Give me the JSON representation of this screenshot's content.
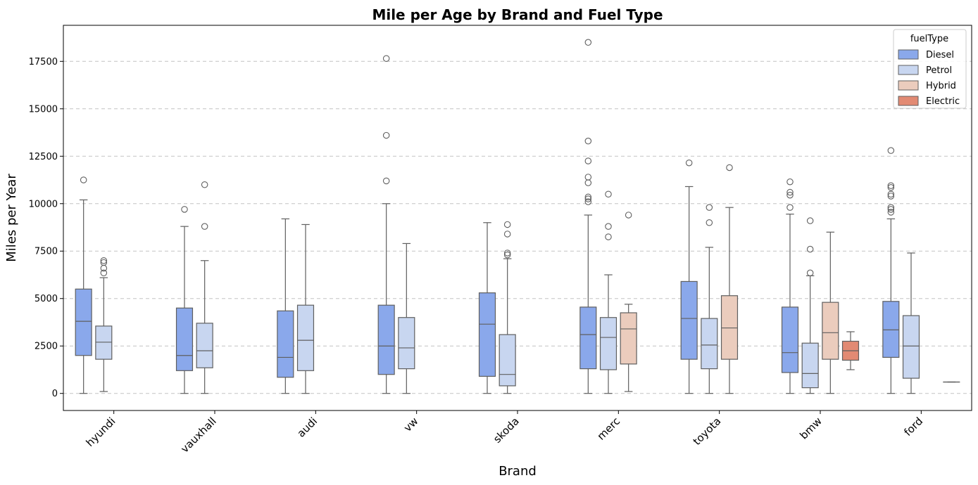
{
  "chart_data": {
    "type": "box",
    "title": "Mile per Age by Brand and Fuel Type",
    "xlabel": "Brand",
    "ylabel": "Miles per Year",
    "ylim": [
      -900,
      19400
    ],
    "yticks": [
      0,
      2500,
      5000,
      7500,
      10000,
      12500,
      15000,
      17500
    ],
    "grid": "y-dashed",
    "legend": {
      "title": "fuelType",
      "placement": "top-right",
      "entries": [
        "Diesel",
        "Petrol",
        "Hybrid",
        "Electric"
      ]
    },
    "categories": [
      "hyundi",
      "vauxhall",
      "audi",
      "vw",
      "skoda",
      "merc",
      "toyota",
      "bmw",
      "ford"
    ],
    "hue_colors": {
      "Diesel": "#8aa8eb",
      "Petrol": "#c8d6f0",
      "Hybrid": "#ebccbd",
      "Electric": "#e28a73"
    },
    "series": [
      {
        "name": "Diesel",
        "boxes": [
          {
            "category": "hyundi",
            "whisker_low": 0,
            "q1": 2000,
            "median": 3800,
            "q3": 5500,
            "whisker_high": 10200,
            "outliers": [
              11250
            ]
          },
          {
            "category": "vauxhall",
            "whisker_low": 0,
            "q1": 1200,
            "median": 2000,
            "q3": 4500,
            "whisker_high": 8800,
            "outliers": [
              9700
            ]
          },
          {
            "category": "audi",
            "whisker_low": 0,
            "q1": 850,
            "median": 1900,
            "q3": 4350,
            "whisker_high": 9200,
            "outliers": []
          },
          {
            "category": "vw",
            "whisker_low": 0,
            "q1": 1000,
            "median": 2500,
            "q3": 4650,
            "whisker_high": 10000,
            "outliers": [
              11200,
              13600,
              17650
            ]
          },
          {
            "category": "skoda",
            "whisker_low": 0,
            "q1": 900,
            "median": 3650,
            "q3": 5300,
            "whisker_high": 9000,
            "outliers": []
          },
          {
            "category": "merc",
            "whisker_low": 0,
            "q1": 1300,
            "median": 3100,
            "q3": 4550,
            "whisker_high": 9400,
            "outliers": [
              10100,
              10250,
              10350,
              11100,
              11400,
              12250,
              13300,
              18500
            ]
          },
          {
            "category": "toyota",
            "whisker_low": 0,
            "q1": 1800,
            "median": 3950,
            "q3": 5900,
            "whisker_high": 10900,
            "outliers": [
              12150
            ]
          },
          {
            "category": "bmw",
            "whisker_low": 0,
            "q1": 1100,
            "median": 2150,
            "q3": 4550,
            "whisker_high": 9450,
            "outliers": [
              9800,
              10450,
              10600,
              11150
            ]
          },
          {
            "category": "ford",
            "whisker_low": 0,
            "q1": 1900,
            "median": 3350,
            "q3": 4850,
            "whisker_high": 9200,
            "outliers": [
              9550,
              9700,
              9800,
              10400,
              10500,
              10850,
              10950,
              12800
            ]
          }
        ]
      },
      {
        "name": "Petrol",
        "boxes": [
          {
            "category": "hyundi",
            "whisker_low": 100,
            "q1": 1800,
            "median": 2700,
            "q3": 3550,
            "whisker_high": 6100,
            "outliers": [
              6350,
              6600,
              6900,
              7000
            ]
          },
          {
            "category": "vauxhall",
            "whisker_low": 0,
            "q1": 1350,
            "median": 2250,
            "q3": 3700,
            "whisker_high": 7000,
            "outliers": [
              8800,
              11000
            ]
          },
          {
            "category": "audi",
            "whisker_low": 0,
            "q1": 1200,
            "median": 2800,
            "q3": 4650,
            "whisker_high": 8900,
            "outliers": []
          },
          {
            "category": "vw",
            "whisker_low": 0,
            "q1": 1300,
            "median": 2400,
            "q3": 4000,
            "whisker_high": 7900,
            "outliers": []
          },
          {
            "category": "skoda",
            "whisker_low": 0,
            "q1": 400,
            "median": 1000,
            "q3": 3100,
            "whisker_high": 7100,
            "outliers": [
              7300,
              7400,
              8400,
              8900
            ]
          },
          {
            "category": "merc",
            "whisker_low": 0,
            "q1": 1250,
            "median": 2950,
            "q3": 4000,
            "whisker_high": 6250,
            "outliers": [
              8250,
              8800,
              10500
            ]
          },
          {
            "category": "toyota",
            "whisker_low": 0,
            "q1": 1300,
            "median": 2550,
            "q3": 3950,
            "whisker_high": 7700,
            "outliers": [
              9000,
              9800
            ]
          },
          {
            "category": "bmw",
            "whisker_low": 0,
            "q1": 300,
            "median": 1050,
            "q3": 2650,
            "whisker_high": 6200,
            "outliers": [
              6350,
              7600,
              9100
            ]
          },
          {
            "category": "ford",
            "whisker_low": 0,
            "q1": 800,
            "median": 2500,
            "q3": 4100,
            "whisker_high": 7400,
            "outliers": []
          }
        ]
      },
      {
        "name": "Hybrid",
        "boxes": [
          {
            "category": "merc",
            "whisker_low": 100,
            "q1": 1550,
            "median": 3400,
            "q3": 4250,
            "whisker_high": 4700,
            "outliers": [
              9400
            ]
          },
          {
            "category": "toyota",
            "whisker_low": 0,
            "q1": 1800,
            "median": 3450,
            "q3": 5150,
            "whisker_high": 9800,
            "outliers": [
              11900
            ]
          },
          {
            "category": "bmw",
            "whisker_low": 0,
            "q1": 1800,
            "median": 3200,
            "q3": 4800,
            "whisker_high": 8500,
            "outliers": []
          }
        ]
      },
      {
        "name": "Electric",
        "boxes": [
          {
            "category": "bmw",
            "whisker_low": 1250,
            "q1": 1750,
            "median": 2250,
            "q3": 2750,
            "whisker_high": 3250,
            "outliers": []
          },
          {
            "category": "ford",
            "whisker_low": 600,
            "q1": 600,
            "median": 600,
            "q3": 600,
            "whisker_high": 600,
            "outliers": []
          }
        ]
      }
    ]
  }
}
